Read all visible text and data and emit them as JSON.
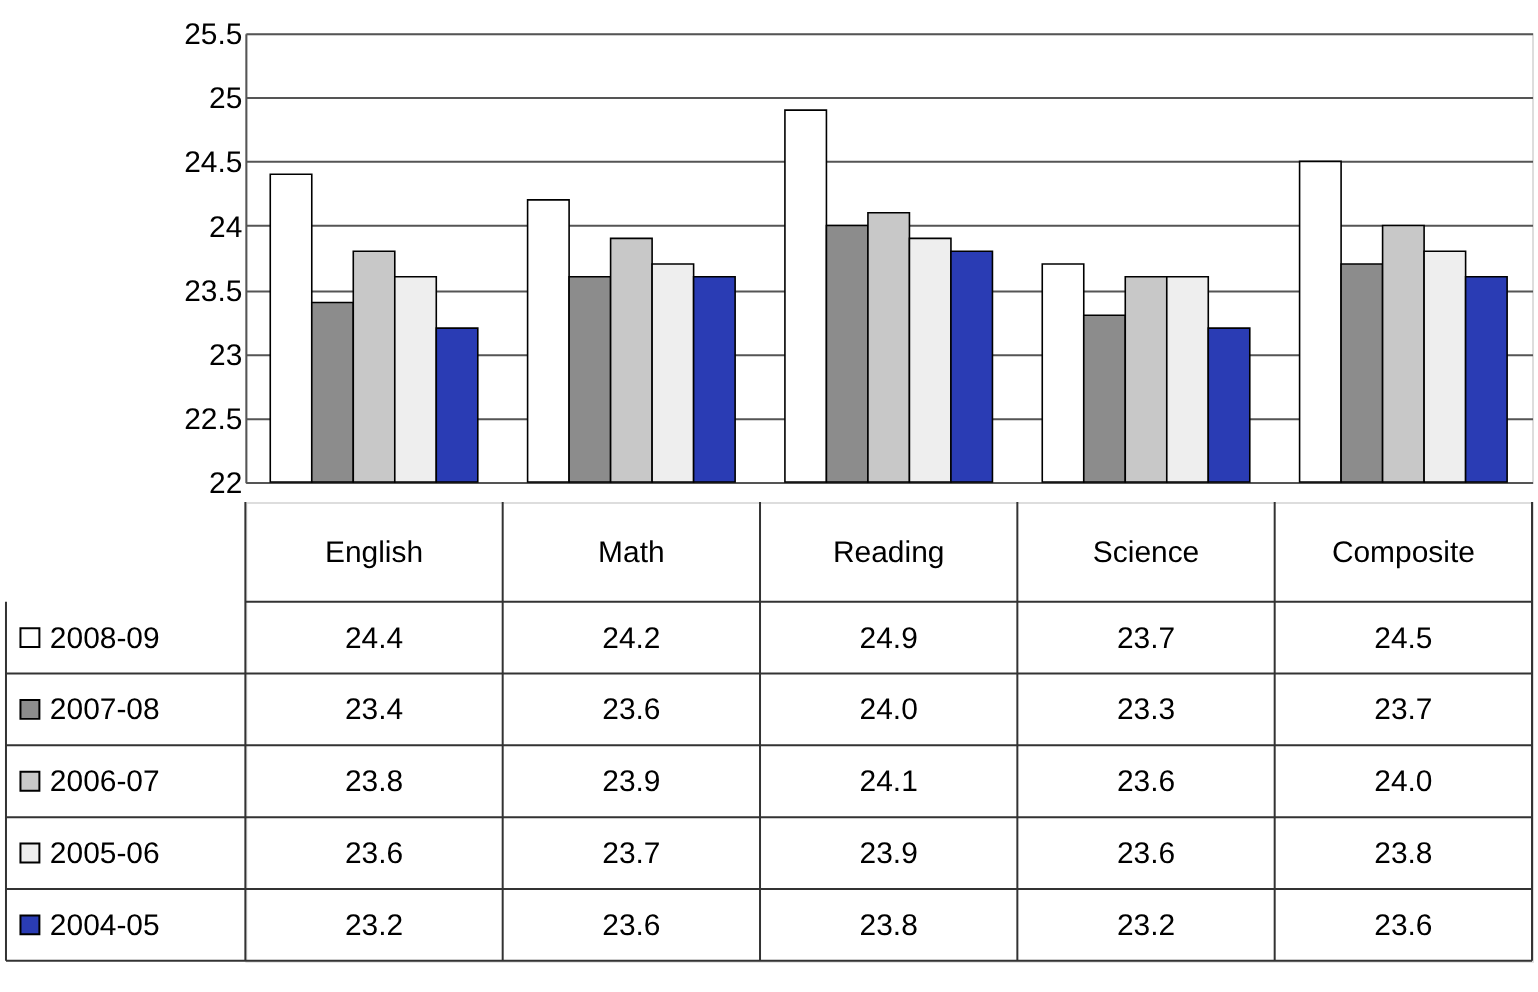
{
  "chart_data": {
    "type": "bar",
    "categories": [
      "English",
      "Math",
      "Reading",
      "Science",
      "Composite"
    ],
    "series": [
      {
        "name": "2008-09",
        "color": "#ffffff",
        "values": [
          24.4,
          24.2,
          24.9,
          23.7,
          24.5
        ],
        "value_labels": [
          "24.4",
          "24.2",
          "24.9",
          "23.7",
          "24.5"
        ]
      },
      {
        "name": "2007-08",
        "color": "#8c8c8c",
        "values": [
          23.4,
          23.6,
          24.0,
          23.3,
          23.7
        ],
        "value_labels": [
          "23.4",
          "23.6",
          "24.0",
          "23.3",
          "23.7"
        ]
      },
      {
        "name": "2006-07",
        "color": "#c8c8c8",
        "values": [
          23.8,
          23.9,
          24.1,
          23.6,
          24.0
        ],
        "value_labels": [
          "23.8",
          "23.9",
          "24.1",
          "23.6",
          "24.0"
        ]
      },
      {
        "name": "2005-06",
        "color": "#eeeeee",
        "values": [
          23.6,
          23.7,
          23.9,
          23.6,
          23.8
        ],
        "value_labels": [
          "23.6",
          "23.7",
          "23.9",
          "23.6",
          "23.8"
        ]
      },
      {
        "name": "2004-05",
        "color": "#2a3cb4",
        "values": [
          23.2,
          23.6,
          23.8,
          23.2,
          23.6
        ],
        "value_labels": [
          "23.2",
          "23.6",
          "23.8",
          "23.2",
          "23.6"
        ]
      }
    ],
    "ylim": [
      22,
      25.5
    ],
    "yticks": [
      22,
      22.5,
      23,
      23.5,
      24,
      24.5,
      25,
      25.5
    ],
    "grid": "y",
    "legend": "bottom left"
  }
}
